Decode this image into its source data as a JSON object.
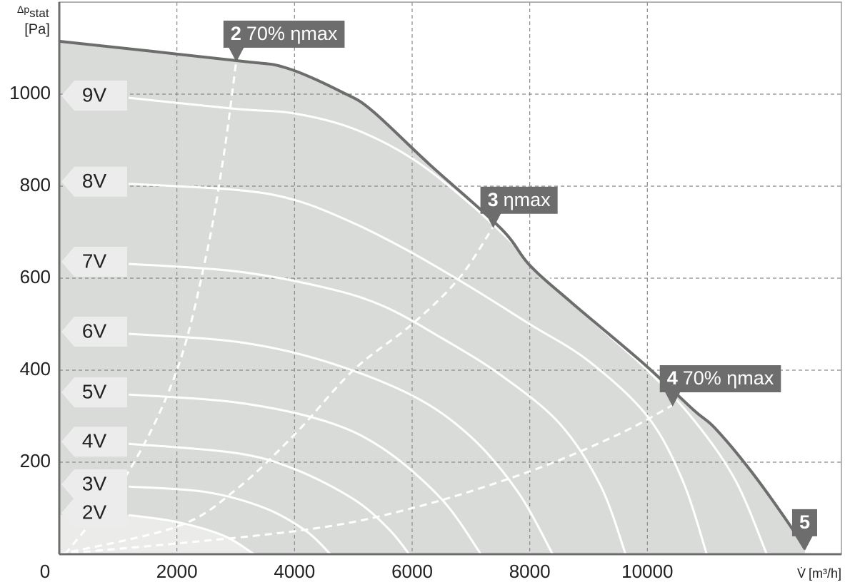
{
  "chart_data": {
    "type": "line",
    "y_label": {
      "symbol": "Δp",
      "subscript": "stat",
      "unit": "[Pa]"
    },
    "x_label": {
      "symbol": "V̇",
      "unit": "[m³/h]"
    },
    "xlim": [
      0,
      13300
    ],
    "ylim": [
      0,
      1200
    ],
    "xticks": [
      0,
      2000,
      4000,
      6000,
      8000,
      10000
    ],
    "yticks": [
      200,
      400,
      600,
      800,
      1000
    ],
    "grid": true,
    "area_color": "#d9dbd9",
    "max_curve": {
      "label": "5",
      "color": "#6d6d6d",
      "x": [
        0,
        3000,
        3860,
        4830,
        5320,
        6290,
        7510,
        8000,
        8720,
        9940,
        10790,
        11150,
        11760,
        12370,
        12680
      ],
      "values": [
        1115,
        1073,
        1057,
        1003,
        964,
        848,
        708,
        628,
        546,
        414,
        313,
        274,
        181,
        73,
        11
      ]
    },
    "series": [
      {
        "name": "9V",
        "color": "#ffffff",
        "x": [
          1180,
          3000,
          4000,
          5000,
          6000,
          7000,
          8000,
          9000,
          10000,
          10800,
          11500,
          12030
        ],
        "values": [
          992,
          968,
          958,
          925,
          860,
          760,
          640,
          515,
          400,
          290,
          160,
          0
        ]
      },
      {
        "name": "8V",
        "color": "#ffffff",
        "x": [
          1180,
          3000,
          4000,
          5000,
          6000,
          7000,
          8000,
          9000,
          10000,
          10600,
          11010
        ],
        "values": [
          805,
          792,
          770,
          720,
          655,
          580,
          500,
          420,
          300,
          160,
          0
        ]
      },
      {
        "name": "7V",
        "color": "#ffffff",
        "x": [
          1180,
          3000,
          4500,
          5500,
          6500,
          7500,
          8500,
          9200,
          9630
        ],
        "values": [
          631,
          615,
          580,
          540,
          470,
          390,
          285,
          150,
          0
        ]
      },
      {
        "name": "6V",
        "color": "#ffffff",
        "x": [
          1180,
          3000,
          4500,
          6000,
          7000,
          7800,
          8390
        ],
        "values": [
          479,
          462,
          420,
          345,
          255,
          135,
          0
        ]
      },
      {
        "name": "5V",
        "color": "#ffffff",
        "x": [
          1180,
          3000,
          4500,
          5500,
          6500,
          7170
        ],
        "values": [
          347,
          330,
          290,
          230,
          120,
          0
        ]
      },
      {
        "name": "4V",
        "color": "#ffffff",
        "x": [
          1180,
          3000,
          4000,
          5000,
          5600,
          5950
        ],
        "values": [
          240,
          220,
          185,
          120,
          55,
          0
        ]
      },
      {
        "name": "3V",
        "color": "#ffffff",
        "x": [
          1180,
          2500,
          3500,
          4200,
          4610
        ],
        "values": [
          147,
          135,
          100,
          50,
          0
        ]
      },
      {
        "name": "2V",
        "color": "#ffffff",
        "area_color": "#ebecea",
        "x": [
          1180,
          2000,
          2800,
          3310
        ],
        "values": [
          85,
          70,
          40,
          0
        ]
      }
    ],
    "efficiency_lines": [
      {
        "number": "2",
        "text": "70% ηmax",
        "color": "#ffffff",
        "x": [
          100,
          1180,
          2000,
          2500,
          2800,
          3010
        ],
        "values": [
          0,
          180,
          400,
          650,
          870,
          1073
        ]
      },
      {
        "number": "3",
        "text": "ηmax",
        "color": "#ffffff",
        "x": [
          0,
          2000,
          3000,
          4000,
          5000,
          6000,
          6800,
          7380
        ],
        "values": [
          0,
          60,
          140,
          260,
          400,
          500,
          600,
          712
        ]
      },
      {
        "number": "4",
        "text": "70% ηmax",
        "color": "#ffffff",
        "x": [
          0,
          4000,
          6000,
          8000,
          9500,
          10430
        ],
        "values": [
          0,
          50,
          100,
          180,
          260,
          324
        ]
      }
    ]
  }
}
